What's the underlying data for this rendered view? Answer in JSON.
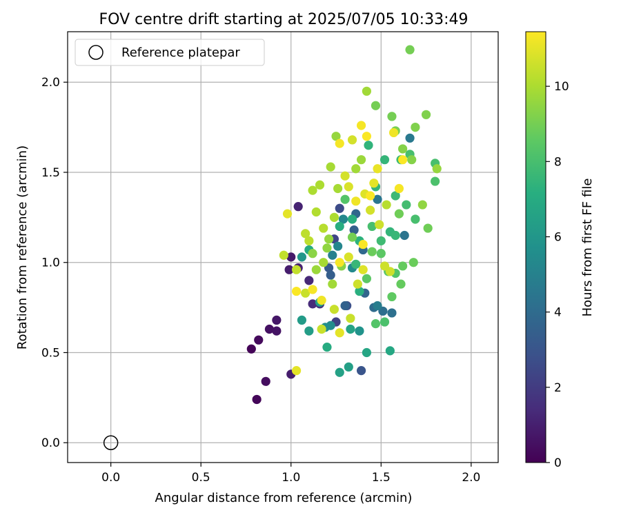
{
  "chart_data": {
    "type": "scatter",
    "title": "FOV centre drift starting at 2025/07/05 10:33:49",
    "xlabel": "Angular distance from reference (arcmin)",
    "ylabel": "Rotation from reference (arcmin)",
    "xlim": [
      -0.24,
      2.15
    ],
    "ylim": [
      -0.11,
      2.28
    ],
    "xticks": [
      "0.0",
      "0.5",
      "1.0",
      "1.5",
      "2.0"
    ],
    "yticks": [
      "0.0",
      "0.5",
      "1.0",
      "1.5",
      "2.0"
    ],
    "grid": true,
    "legend": {
      "position": "upper-left",
      "entries": [
        "Reference platepar"
      ]
    },
    "reference_point": {
      "x": 0.0,
      "y": 0.0
    },
    "colorbar": {
      "label": "Hours from first FF file",
      "range": [
        0,
        11.45
      ],
      "ticks": [
        "0",
        "2",
        "4",
        "6",
        "8",
        "10"
      ],
      "colormap": "viridis"
    },
    "points": [
      [
        0.78,
        0.52,
        0.1
      ],
      [
        0.81,
        0.24,
        0.2
      ],
      [
        0.82,
        0.57,
        0.3
      ],
      [
        0.86,
        0.34,
        0.4
      ],
      [
        0.88,
        0.63,
        0.5
      ],
      [
        0.92,
        0.62,
        0.6
      ],
      [
        0.92,
        0.68,
        0.7
      ],
      [
        1.0,
        1.03,
        0.8
      ],
      [
        0.99,
        0.96,
        0.9
      ],
      [
        1.0,
        0.38,
        0.9
      ],
      [
        1.04,
        0.97,
        1.0
      ],
      [
        1.04,
        1.31,
        1.1
      ],
      [
        1.1,
        0.9,
        1.3
      ],
      [
        1.12,
        0.77,
        1.4
      ],
      [
        1.16,
        0.77,
        1.6
      ],
      [
        1.25,
        0.67,
        2.2
      ],
      [
        1.24,
        1.13,
        2.4
      ],
      [
        1.27,
        1.3,
        2.6
      ],
      [
        1.31,
        0.76,
        2.8
      ],
      [
        1.39,
        0.4,
        3.0
      ],
      [
        1.21,
        0.97,
        3.2
      ],
      [
        1.22,
        0.93,
        3.4
      ],
      [
        1.35,
        1.18,
        3.5
      ],
      [
        1.3,
        0.76,
        3.6
      ],
      [
        1.36,
        1.27,
        3.8
      ],
      [
        1.4,
        1.07,
        3.9
      ],
      [
        1.46,
        0.75,
        4.0
      ],
      [
        1.51,
        0.73,
        4.1
      ],
      [
        1.56,
        0.72,
        4.2
      ],
      [
        1.63,
        1.15,
        4.4
      ],
      [
        1.66,
        1.69,
        4.6
      ],
      [
        1.48,
        0.76,
        4.8
      ],
      [
        1.23,
        1.04,
        5.0
      ],
      [
        1.26,
        1.09,
        5.2
      ],
      [
        1.29,
        1.24,
        5.3
      ],
      [
        1.34,
        0.97,
        5.4
      ],
      [
        1.22,
        0.65,
        5.5
      ],
      [
        1.19,
        0.64,
        5.6
      ],
      [
        1.38,
        0.62,
        5.8
      ],
      [
        1.06,
        1.03,
        6.0
      ],
      [
        1.06,
        0.68,
        6.2
      ],
      [
        1.1,
        0.62,
        6.3
      ],
      [
        1.16,
        0.78,
        6.4
      ],
      [
        1.32,
        0.42,
        6.4
      ],
      [
        1.27,
        0.39,
        6.5
      ],
      [
        1.33,
        0.63,
        6.6
      ],
      [
        1.42,
        0.5,
        6.7
      ],
      [
        1.55,
        0.51,
        6.8
      ],
      [
        1.2,
        0.53,
        7.0
      ],
      [
        1.1,
        1.07,
        7.0
      ],
      [
        1.27,
        1.2,
        7.1
      ],
      [
        1.34,
        1.24,
        7.2
      ],
      [
        1.38,
        1.12,
        7.3
      ],
      [
        1.43,
        1.65,
        7.4
      ],
      [
        1.47,
        1.42,
        7.5
      ],
      [
        1.52,
        1.57,
        7.5
      ],
      [
        1.55,
        1.17,
        7.5
      ],
      [
        1.58,
        1.15,
        7.6
      ],
      [
        1.58,
        1.37,
        7.7
      ],
      [
        1.61,
        1.57,
        7.8
      ],
      [
        1.64,
        1.32,
        7.9
      ],
      [
        1.66,
        1.6,
        8.0
      ],
      [
        1.69,
        1.24,
        8.0
      ],
      [
        1.8,
        1.55,
        8.0
      ],
      [
        1.8,
        1.45,
        8.1
      ],
      [
        1.52,
        0.67,
        8.1
      ],
      [
        1.47,
        0.66,
        8.3
      ],
      [
        1.58,
        0.94,
        8.3
      ],
      [
        1.54,
        0.95,
        8.4
      ],
      [
        1.42,
        0.91,
        8.5
      ],
      [
        1.56,
        0.81,
        8.6
      ],
      [
        1.61,
        0.88,
        8.7
      ],
      [
        1.62,
        0.98,
        8.7
      ],
      [
        1.68,
        1.0,
        8.8
      ],
      [
        1.76,
        1.19,
        8.9
      ],
      [
        1.6,
        1.27,
        8.9
      ],
      [
        1.47,
        1.87,
        9.0
      ],
      [
        1.56,
        1.81,
        9.0
      ],
      [
        1.66,
        2.18,
        9.0
      ],
      [
        1.58,
        1.73,
        9.1
      ],
      [
        1.69,
        1.75,
        9.2
      ],
      [
        1.75,
        1.82,
        9.2
      ],
      [
        1.62,
        1.63,
        9.3
      ],
      [
        1.67,
        1.57,
        9.3
      ],
      [
        1.73,
        1.32,
        9.5
      ],
      [
        1.81,
        1.52,
        9.6
      ],
      [
        1.25,
        1.7,
        9.6
      ],
      [
        1.39,
        1.57,
        9.7
      ],
      [
        1.42,
        1.95,
        9.8
      ],
      [
        1.36,
        1.52,
        9.8
      ],
      [
        1.22,
        1.53,
        9.9
      ],
      [
        1.26,
        1.41,
        9.9
      ],
      [
        1.12,
        1.4,
        10.0
      ],
      [
        1.16,
        1.43,
        10.0
      ],
      [
        1.14,
        1.28,
        10.1
      ],
      [
        1.18,
        1.19,
        10.2
      ],
      [
        1.08,
        1.16,
        10.3
      ],
      [
        1.1,
        1.12,
        10.3
      ],
      [
        0.96,
        1.04,
        10.4
      ],
      [
        1.03,
        0.96,
        10.4
      ],
      [
        1.08,
        0.83,
        10.5
      ],
      [
        1.17,
        0.63,
        10.5
      ],
      [
        1.24,
        0.74,
        10.5
      ],
      [
        1.33,
        0.69,
        10.5
      ],
      [
        1.37,
        0.88,
        10.6
      ],
      [
        1.52,
        0.98,
        10.6
      ],
      [
        1.55,
        0.95,
        10.6
      ],
      [
        1.3,
        1.48,
        10.7
      ],
      [
        1.34,
        1.68,
        10.7
      ],
      [
        1.32,
        1.42,
        10.8
      ],
      [
        1.41,
        1.38,
        10.9
      ],
      [
        1.46,
        1.44,
        11.0
      ],
      [
        1.48,
        1.52,
        11.1
      ],
      [
        1.57,
        1.72,
        11.2
      ],
      [
        1.6,
        1.41,
        11.3
      ],
      [
        1.62,
        1.57,
        11.4
      ],
      [
        1.27,
        1.66,
        11.3
      ],
      [
        1.39,
        1.76,
        11.3
      ],
      [
        1.42,
        1.7,
        11.4
      ],
      [
        1.44,
        1.37,
        11.4
      ],
      [
        1.36,
        1.34,
        11.2
      ],
      [
        1.4,
        1.1,
        11.4
      ],
      [
        1.27,
        1.0,
        11.3
      ],
      [
        1.17,
        0.79,
        11.2
      ],
      [
        1.12,
        0.85,
        11.3
      ],
      [
        1.03,
        0.84,
        11.4
      ],
      [
        1.03,
        0.4,
        11.0
      ],
      [
        0.98,
        1.27,
        11.0
      ],
      [
        1.27,
        0.61,
        11.0
      ],
      [
        1.4,
        0.96,
        10.9
      ],
      [
        1.32,
        1.03,
        10.8
      ],
      [
        1.44,
        1.29,
        10.7
      ],
      [
        1.49,
        1.21,
        10.6
      ],
      [
        1.24,
        1.25,
        10.0
      ],
      [
        1.2,
        1.08,
        9.5
      ],
      [
        1.28,
        0.98,
        9.3
      ],
      [
        1.34,
        1.14,
        9.0
      ],
      [
        1.45,
        1.06,
        8.8
      ],
      [
        1.5,
        1.05,
        8.5
      ],
      [
        1.3,
        1.35,
        8.3
      ],
      [
        1.45,
        1.2,
        8.0
      ],
      [
        1.5,
        1.12,
        7.8
      ],
      [
        1.36,
        0.99,
        7.6
      ],
      [
        1.23,
        0.88,
        9.8
      ],
      [
        1.14,
        0.96,
        9.7
      ],
      [
        1.18,
        1.0,
        9.9
      ],
      [
        1.21,
        1.13,
        9.6
      ],
      [
        1.53,
        1.32,
        10.2
      ],
      [
        1.38,
        0.84,
        7.2
      ],
      [
        1.41,
        0.83,
        3.7
      ],
      [
        1.48,
        1.35,
        4.5
      ],
      [
        1.12,
        1.05,
        9.4
      ]
    ]
  }
}
